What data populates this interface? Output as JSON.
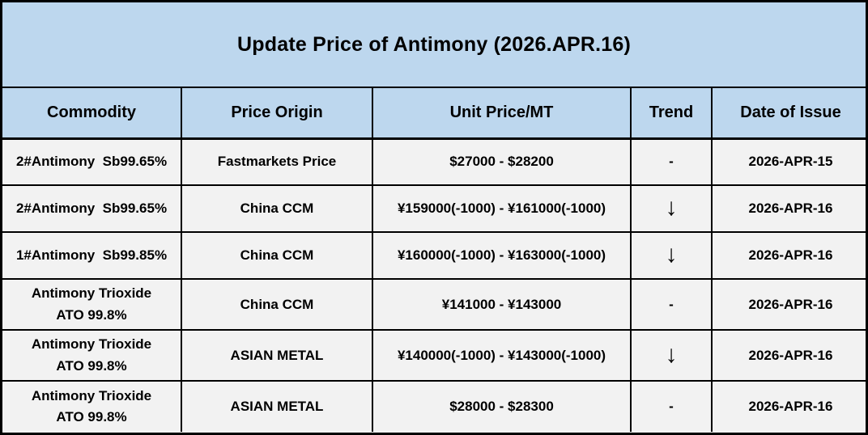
{
  "title": "Update Price of Antimony (2026.APR.16)",
  "colors": {
    "header_bg": "#bdd7ee",
    "row_bg": "#f2f2f2",
    "border": "#000000",
    "text": "#000000"
  },
  "table": {
    "columns": [
      "Commodity",
      "Price Origin",
      "Unit Price/MT",
      "Trend",
      "Date of Issue"
    ],
    "rows": [
      {
        "commodity": "2#Antimony  Sb99.65%",
        "origin": "Fastmarkets Price",
        "price": "$27000 - $28200",
        "trend": "-",
        "date": "2026-APR-15"
      },
      {
        "commodity": "2#Antimony  Sb99.65%",
        "origin": "China CCM",
        "price": "¥159000(-1000) - ¥161000(-1000)",
        "trend": "↓",
        "date": "2026-APR-16"
      },
      {
        "commodity": "1#Antimony  Sb99.85%",
        "origin": "China CCM",
        "price": "¥160000(-1000) - ¥163000(-1000)",
        "trend": "↓",
        "date": "2026-APR-16"
      },
      {
        "commodity": "Antimony Trioxide\nATO 99.8%",
        "origin": "China CCM",
        "price": "¥141000 - ¥143000",
        "trend": "-",
        "date": "2026-APR-16"
      },
      {
        "commodity": "Antimony Trioxide\nATO 99.8%",
        "origin": "ASIAN METAL",
        "price": "¥140000(-1000) - ¥143000(-1000)",
        "trend": "↓",
        "date": "2026-APR-16"
      },
      {
        "commodity": "Antimony Trioxide\nATO 99.8%",
        "origin": "ASIAN METAL",
        "price": "$28000 - $28300",
        "trend": "-",
        "date": "2026-APR-16"
      }
    ]
  }
}
